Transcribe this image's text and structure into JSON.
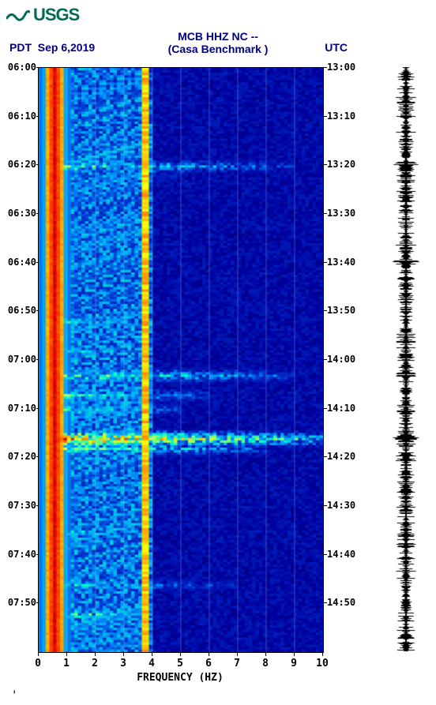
{
  "logo": {
    "text": "USGS",
    "color": "#006b54"
  },
  "header": {
    "station": "MCB HHZ NC --",
    "benchmark": "(Casa Benchmark )",
    "pdt_label": "PDT",
    "date": "Sep 6,2019",
    "utc_label": "UTC"
  },
  "spectrogram": {
    "type": "heatmap",
    "x_axis": {
      "label": "FREQUENCY (HZ)",
      "min": 0,
      "max": 10,
      "ticks": [
        0,
        1,
        2,
        3,
        4,
        5,
        6,
        7,
        8,
        9,
        10
      ]
    },
    "y_axis_left": {
      "label": "PDT",
      "ticks": [
        "06:00",
        "06:10",
        "06:20",
        "06:30",
        "06:40",
        "06:50",
        "07:00",
        "07:10",
        "07:20",
        "07:30",
        "07:40",
        "07:50"
      ]
    },
    "y_axis_right": {
      "label": "UTC",
      "ticks": [
        "13:00",
        "13:10",
        "13:20",
        "13:30",
        "13:40",
        "13:50",
        "14:00",
        "14:10",
        "14:20",
        "14:30",
        "14:40",
        "14:50"
      ]
    },
    "duration_minutes": 120,
    "grid_lines_x": [
      1,
      2,
      3,
      4,
      5,
      6,
      7,
      8,
      9
    ],
    "grid_color": "rgba(180,200,255,0.35)",
    "background_color": "#001a66",
    "colormap": [
      "#00004d",
      "#0000a0",
      "#0033cc",
      "#0099ff",
      "#00ffcc",
      "#99ff66",
      "#ffff00",
      "#ff9900",
      "#ff3300",
      "#cc0000"
    ],
    "hot_band": {
      "freq_hz": 0.5,
      "width_hz": 0.35,
      "peak_color": "#ff3300"
    },
    "secondary_band": {
      "freq_hz": 3.7,
      "width_hz": 0.1,
      "color": "#ffcc00"
    },
    "events": [
      {
        "t_min": 20,
        "intensity": 0.55,
        "spread_hz": 9.0
      },
      {
        "t_min": 22,
        "intensity": 0.4,
        "spread_hz": 5.0
      },
      {
        "t_min": 40,
        "intensity": 0.35,
        "spread_hz": 4.0
      },
      {
        "t_min": 52,
        "intensity": 0.45,
        "spread_hz": 4.0
      },
      {
        "t_min": 58,
        "intensity": 0.45,
        "spread_hz": 4.0
      },
      {
        "t_min": 63,
        "intensity": 0.6,
        "spread_hz": 9.0
      },
      {
        "t_min": 67,
        "intensity": 0.55,
        "spread_hz": 6.0
      },
      {
        "t_min": 70,
        "intensity": 0.5,
        "spread_hz": 5.0
      },
      {
        "t_min": 76,
        "intensity": 0.95,
        "spread_hz": 10.0
      },
      {
        "t_min": 78,
        "intensity": 0.6,
        "spread_hz": 8.0
      },
      {
        "t_min": 80,
        "intensity": 0.4,
        "spread_hz": 4.0
      },
      {
        "t_min": 95,
        "intensity": 0.45,
        "spread_hz": 4.0
      },
      {
        "t_min": 98,
        "intensity": 0.4,
        "spread_hz": 4.0
      },
      {
        "t_min": 106,
        "intensity": 0.45,
        "spread_hz": 7.0
      },
      {
        "t_min": 112,
        "intensity": 0.55,
        "spread_hz": 4.0
      }
    ]
  },
  "waveform": {
    "type": "trace",
    "color": "#000000",
    "base_amplitude": 8,
    "samples": 740,
    "spikes": [
      {
        "t_min": 20,
        "amp": 28
      },
      {
        "t_min": 40,
        "amp": 18
      },
      {
        "t_min": 63,
        "amp": 16
      },
      {
        "t_min": 76,
        "amp": 30
      },
      {
        "t_min": 98,
        "amp": 16
      },
      {
        "t_min": 112,
        "amp": 14
      }
    ]
  },
  "footer_mark": "'"
}
